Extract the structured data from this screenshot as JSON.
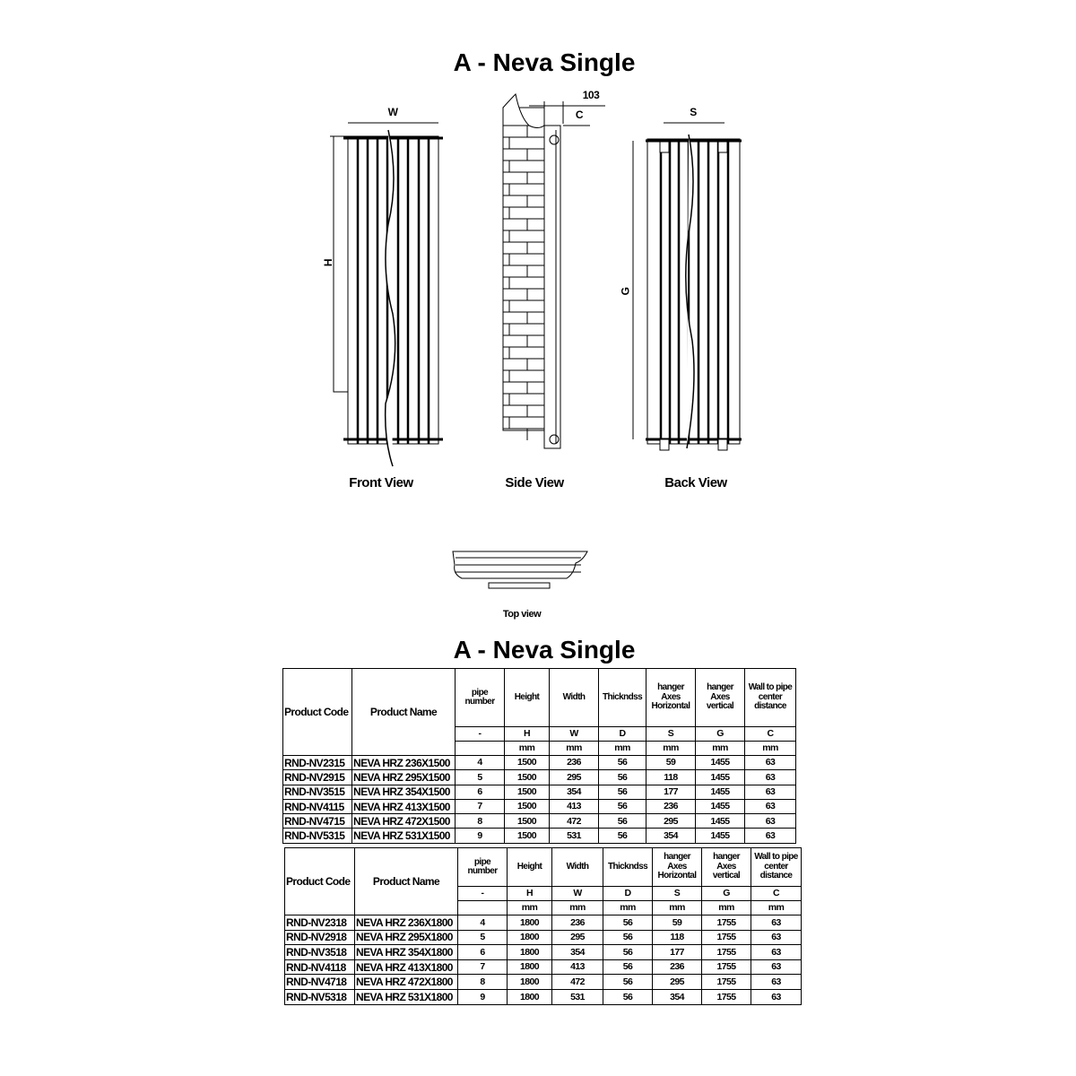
{
  "title_top": "A - Neva Single",
  "title_table": "A - Neva Single",
  "drawing": {
    "dim_W": "W",
    "dim_H": "H",
    "dim_103": "103",
    "dim_C": "C",
    "dim_S": "S",
    "dim_G": "G",
    "front_view": "Front View",
    "side_view": "Side View",
    "back_view": "Back View",
    "top_view": "Top view"
  },
  "columns": [
    "Product Code",
    "Product Name",
    "pipe number",
    "Height",
    "Width",
    "Thickndss",
    "hanger Axes Horizontal",
    "hanger Axes vertical",
    "Wall to pipe center distance"
  ],
  "symbols": [
    "-",
    "H",
    "W",
    "D",
    "S",
    "G",
    "C"
  ],
  "units": [
    "",
    "mm",
    "mm",
    "mm",
    "mm",
    "mm",
    "mm"
  ],
  "tables": [
    {
      "rows": [
        [
          "RND-NV2315",
          "NEVA HRZ 236X1500",
          "4",
          "1500",
          "236",
          "56",
          "59",
          "1455",
          "63"
        ],
        [
          "RND-NV2915",
          "NEVA HRZ 295X1500",
          "5",
          "1500",
          "295",
          "56",
          "118",
          "1455",
          "63"
        ],
        [
          "RND-NV3515",
          "NEVA HRZ 354X1500",
          "6",
          "1500",
          "354",
          "56",
          "177",
          "1455",
          "63"
        ],
        [
          "RND-NV4115",
          "NEVA HRZ 413X1500",
          "7",
          "1500",
          "413",
          "56",
          "236",
          "1455",
          "63"
        ],
        [
          "RND-NV4715",
          "NEVA HRZ 472X1500",
          "8",
          "1500",
          "472",
          "56",
          "295",
          "1455",
          "63"
        ],
        [
          "RND-NV5315",
          "NEVA HRZ 531X1500",
          "9",
          "1500",
          "531",
          "56",
          "354",
          "1455",
          "63"
        ]
      ]
    },
    {
      "rows": [
        [
          "RND-NV2318",
          "NEVA HRZ 236X1800",
          "4",
          "1800",
          "236",
          "56",
          "59",
          "1755",
          "63"
        ],
        [
          "RND-NV2918",
          "NEVA HRZ 295X1800",
          "5",
          "1800",
          "295",
          "56",
          "118",
          "1755",
          "63"
        ],
        [
          "RND-NV3518",
          "NEVA HRZ 354X1800",
          "6",
          "1800",
          "354",
          "56",
          "177",
          "1755",
          "63"
        ],
        [
          "RND-NV4118",
          "NEVA HRZ 413X1800",
          "7",
          "1800",
          "413",
          "56",
          "236",
          "1755",
          "63"
        ],
        [
          "RND-NV4718",
          "NEVA HRZ 472X1800",
          "8",
          "1800",
          "472",
          "56",
          "295",
          "1755",
          "63"
        ],
        [
          "RND-NV5318",
          "NEVA HRZ 531X1800",
          "9",
          "1800",
          "531",
          "56",
          "354",
          "1755",
          "63"
        ]
      ]
    }
  ]
}
